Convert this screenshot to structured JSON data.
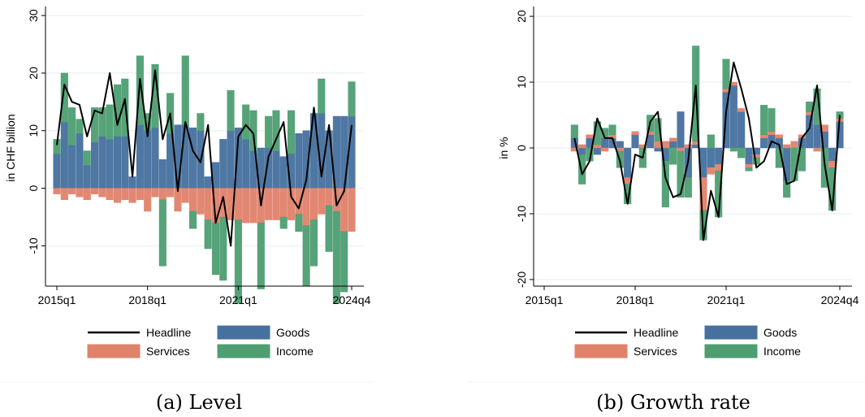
{
  "colors": {
    "goods": "#46709E",
    "services": "#E0826A",
    "income": "#4E9E72",
    "headline": "#000000",
    "grid": "#E4EEF0",
    "axis": "#000000"
  },
  "panel_a_caption": "(a) Level",
  "panel_b_caption": "(b) Growth rate",
  "chart_data": [
    {
      "id": "level",
      "type": "bar",
      "stacked": true,
      "ylabel": "in CHF billion",
      "ylim": [
        -17,
        31
      ],
      "yticks": [
        -10,
        0,
        10,
        20,
        30
      ],
      "ytick_labels": [
        "-10",
        "0",
        "10",
        "20",
        "30"
      ],
      "xticks": [
        "2015q1",
        "2018q1",
        "2021q1",
        "2024q4"
      ],
      "grid": true,
      "legend": {
        "placement": "bottom",
        "entries": [
          "Headline",
          "Goods",
          "Services",
          "Income"
        ]
      },
      "x": [
        "2015q1",
        "2015q2",
        "2015q3",
        "2015q4",
        "2016q1",
        "2016q2",
        "2016q3",
        "2016q4",
        "2017q1",
        "2017q2",
        "2017q3",
        "2017q4",
        "2018q1",
        "2018q2",
        "2018q3",
        "2018q4",
        "2019q1",
        "2019q2",
        "2019q3",
        "2019q4",
        "2020q1",
        "2020q2",
        "2020q3",
        "2020q4",
        "2021q1",
        "2021q2",
        "2021q3",
        "2021q4",
        "2022q1",
        "2022q2",
        "2022q3",
        "2022q4",
        "2023q1",
        "2023q2",
        "2023q3",
        "2023q4",
        "2024q1",
        "2024q2",
        "2024q3",
        "2024q4"
      ],
      "series": [
        {
          "name": "Goods",
          "kind": "bar",
          "values": [
            6,
            11.5,
            7.5,
            9.5,
            4,
            8,
            9,
            8.5,
            9,
            9,
            2,
            11,
            10,
            10.5,
            5,
            9.5,
            11,
            11,
            10.5,
            10,
            2,
            4.5,
            8.5,
            10,
            10.5,
            8.5,
            6.5,
            7,
            7,
            6.5,
            5.5,
            6,
            9.5,
            10,
            13,
            13,
            10,
            12.5,
            12.5,
            12.5
          ]
        },
        {
          "name": "Services",
          "kind": "bar",
          "values": [
            -1,
            -2,
            -1,
            -1.5,
            -2,
            -1,
            -1.5,
            -2,
            -2.5,
            -2,
            -2.5,
            -2,
            -4,
            -1.5,
            -2,
            -1.5,
            -4,
            -2.5,
            -4,
            -4.5,
            -5.5,
            -6,
            -5,
            -5.5,
            -5.5,
            -6,
            -6,
            -6,
            -5.5,
            -5.5,
            -5,
            -5.5,
            -4.5,
            -6.5,
            -5.5,
            -4.5,
            -3,
            -4,
            -7.5,
            -7.5
          ]
        },
        {
          "name": "Income",
          "kind": "bar",
          "values": [
            2.5,
            8.5,
            6.5,
            2.5,
            2.5,
            6,
            5,
            6,
            9,
            10,
            0,
            12,
            3,
            11,
            -11.5,
            7,
            0,
            12,
            -3,
            3,
            -5,
            -9,
            -11,
            7,
            -14.5,
            6,
            7,
            -11.5,
            5.5,
            7,
            -2,
            7.5,
            -3,
            -10.5,
            -8,
            6,
            -8,
            -16,
            -10.5,
            6
          ]
        },
        {
          "name": "Headline",
          "kind": "line",
          "values": [
            7.5,
            18,
            15,
            14.5,
            9,
            13.5,
            13,
            20,
            11,
            15.5,
            2,
            19,
            9,
            20.5,
            8.5,
            13,
            -0.5,
            11.5,
            6.5,
            4.5,
            11,
            -6,
            -1.5,
            -10,
            9,
            11,
            9.5,
            -3,
            5.5,
            8.5,
            11.5,
            -1.5,
            -3.5,
            1.5,
            14,
            2,
            11,
            -3,
            -0.5,
            11
          ]
        }
      ]
    },
    {
      "id": "growth",
      "type": "bar",
      "stacked": true,
      "ylabel": "in %",
      "ylim": [
        -21,
        21
      ],
      "yticks": [
        -20,
        -10,
        0,
        10,
        20
      ],
      "ytick_labels": [
        "-20",
        "-10",
        "0",
        "10",
        "20"
      ],
      "xticks": [
        "2015q1",
        "2018q1",
        "2021q1",
        "2024q4"
      ],
      "grid": true,
      "legend": {
        "placement": "bottom",
        "entries": [
          "Headline",
          "Goods",
          "Services",
          "Income"
        ]
      },
      "x": [
        "2016q1",
        "2016q2",
        "2016q3",
        "2016q4",
        "2017q1",
        "2017q2",
        "2017q3",
        "2017q4",
        "2018q1",
        "2018q2",
        "2018q3",
        "2018q4",
        "2019q1",
        "2019q2",
        "2019q3",
        "2019q4",
        "2020q1",
        "2020q2",
        "2020q3",
        "2020q4",
        "2021q1",
        "2021q2",
        "2021q3",
        "2021q4",
        "2022q1",
        "2022q2",
        "2022q3",
        "2022q4",
        "2023q1",
        "2023q2",
        "2023q3",
        "2023q4",
        "2024q1",
        "2024q2",
        "2024q3",
        "2024q4"
      ],
      "series": [
        {
          "name": "Goods",
          "kind": "bar",
          "values": [
            1.5,
            -1,
            1.5,
            -1,
            1.5,
            1.5,
            1,
            -4.5,
            2,
            0,
            2,
            -0.5,
            -2,
            1,
            5.5,
            -4.5,
            0.5,
            -4.5,
            -3,
            -2.5,
            8.5,
            9.5,
            5.5,
            -2.5,
            -1,
            1.5,
            2,
            1.5,
            -5,
            0,
            1.5,
            5,
            3.5,
            2.5,
            -2,
            4
          ]
        },
        {
          "name": "Services",
          "kind": "bar",
          "values": [
            -0.5,
            0.5,
            0.5,
            0.5,
            -0.5,
            0.5,
            -0.5,
            -1,
            0.5,
            0.5,
            0.5,
            1,
            1,
            0.5,
            -0.5,
            0.5,
            0.5,
            -5,
            -1,
            -1,
            0.5,
            0.5,
            0.5,
            -0.5,
            -0.5,
            0.5,
            0.5,
            0.5,
            0.5,
            1,
            0.5,
            0.5,
            -0.5,
            1,
            -1,
            0.5
          ]
        },
        {
          "name": "Income",
          "kind": "bar",
          "values": [
            2,
            -4.5,
            -2,
            3.5,
            1.5,
            1.5,
            -2.5,
            -3,
            0,
            -3,
            2.5,
            3.5,
            -7,
            -2.5,
            -7,
            -3,
            14.5,
            -4.5,
            2,
            -7,
            4.5,
            -0.5,
            -1.5,
            -0.5,
            -1,
            4.5,
            3.5,
            -3,
            -2.5,
            -5,
            -3.5,
            1.5,
            5.5,
            -6,
            -6.5,
            1
          ]
        },
        {
          "name": "Headline",
          "kind": "line",
          "values": [
            1.5,
            -4,
            -2,
            4.5,
            1.5,
            1.5,
            -2,
            -8.5,
            -1,
            -1.5,
            4,
            5.5,
            -4.5,
            -7.5,
            -7,
            -2,
            9.5,
            -14,
            -6.5,
            -10.5,
            5.5,
            13,
            9,
            4.5,
            -3,
            -2,
            1,
            0.5,
            -5.5,
            -5,
            1.5,
            3,
            9.5,
            -2.5,
            -9.5,
            5
          ]
        }
      ]
    }
  ]
}
